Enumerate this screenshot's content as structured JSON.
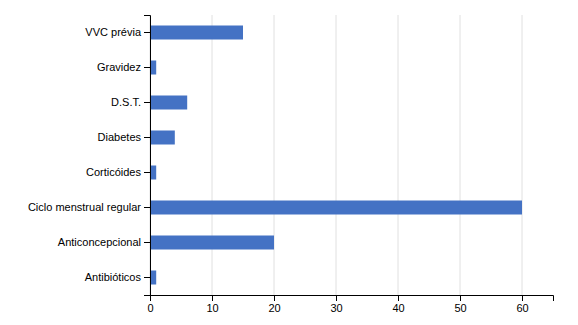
{
  "chart_data": {
    "type": "bar",
    "orientation": "horizontal",
    "categories": [
      "Antibióticos",
      "Anticoncepcional",
      "Ciclo menstrual regular",
      "Corticóides",
      "Diabetes",
      "D.S.T.",
      "Gravidez",
      "VVC prévia"
    ],
    "values": [
      1,
      20,
      60,
      1,
      4,
      6,
      1,
      15
    ],
    "color": "#4472C4",
    "xlim": [
      0,
      65
    ],
    "xticks": [
      0,
      10,
      20,
      30,
      40,
      50,
      60
    ],
    "grid": true
  }
}
